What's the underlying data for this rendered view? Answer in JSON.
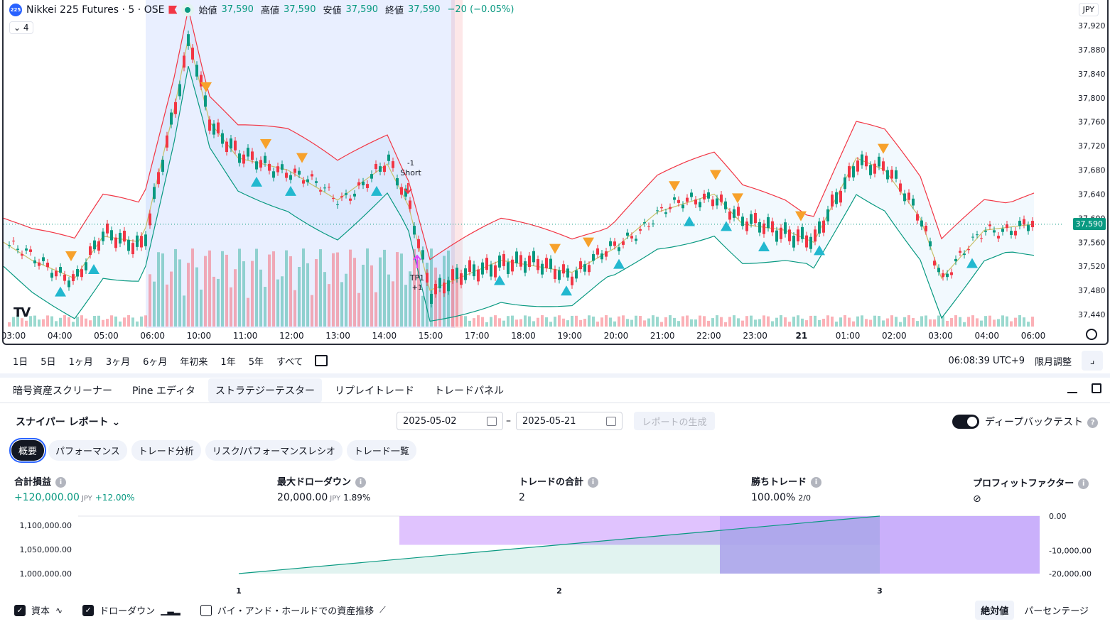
{
  "symbol": {
    "badge": "225",
    "name": "Nikkei 225 Futures · 5 · OSE",
    "ohlc": [
      {
        "label": "始値",
        "value": "37,590"
      },
      {
        "label": "高値",
        "value": "37,590"
      },
      {
        "label": "安値",
        "value": "37,590"
      },
      {
        "label": "終値",
        "value": "37,590"
      }
    ],
    "change": "−20 (−0.05%)",
    "indicator_count": "4",
    "currency": "JPY",
    "last_price": "37,590"
  },
  "price_axis": [
    "37,920",
    "37,880",
    "37,840",
    "37,800",
    "37,760",
    "37,720",
    "37,680",
    "37,640",
    "37,600",
    "37,560",
    "37,520",
    "37,480",
    "37,440"
  ],
  "time_axis": [
    "03:00",
    "04:00",
    "05:00",
    "06:00",
    "10:00",
    "11:00",
    "12:00",
    "13:00",
    "14:00",
    "15:00",
    "17:00",
    "18:00",
    "19:00",
    "20:00",
    "21:00",
    "22:00",
    "23:00",
    "21",
    "01:00",
    "02:00",
    "03:00",
    "04:00",
    "06:00"
  ],
  "annotations": {
    "short_qty": "-1",
    "short_label": "Short",
    "tp_label": "TP1",
    "tp_qty": "+1"
  },
  "range_bar": {
    "ranges": [
      "1日",
      "5日",
      "1ヶ月",
      "3ヶ月",
      "6ヶ月",
      "年初来",
      "1年",
      "5年",
      "すべて"
    ],
    "clock": "06:08:39 UTC+9",
    "adjust": "限月調整"
  },
  "panel_tabs": [
    {
      "label": "暗号資産スクリーナー"
    },
    {
      "label": "Pine エディタ"
    },
    {
      "label": "ストラテジーテスター",
      "active": true
    },
    {
      "label": "リプレイトレード"
    },
    {
      "label": "トレードパネル"
    }
  ],
  "report": {
    "title": "スナイパー レポート",
    "date_from": "2025-05-02",
    "date_to": "2025-05-21",
    "dash": "–",
    "generate": "レポートの生成",
    "deep_backtest": "ディープバックテスト"
  },
  "subtabs": [
    {
      "label": "概要",
      "active": true
    },
    {
      "label": "パフォーマンス"
    },
    {
      "label": "トレード分析"
    },
    {
      "label": "リスク/パフォーマンスレシオ"
    },
    {
      "label": "トレード一覧"
    }
  ],
  "metrics": {
    "net_profit": {
      "title": "合計損益",
      "value": "+120,000.00",
      "unit": "JPY",
      "pct": "+12.00%"
    },
    "max_dd": {
      "title": "最大ドローダウン",
      "value": "20,000.00",
      "unit": "JPY",
      "pct": "1.89%"
    },
    "trades": {
      "title": "トレードの合計",
      "value": "2"
    },
    "win": {
      "title": "勝ちトレード",
      "value": "100.00%",
      "sub": "2/0"
    },
    "pf": {
      "title": "プロフィットファクター",
      "value": "⊘"
    }
  },
  "equity_chart": {
    "left_axis": [
      "1,100,000.00",
      "1,050,000.00",
      "1,000,000.00"
    ],
    "right_axis": [
      "0.00",
      "-10,000.00",
      "-20,000.00"
    ],
    "x_labels": [
      "1",
      "2",
      "3"
    ]
  },
  "chart_data": {
    "type": "area",
    "x": [
      1,
      2,
      3
    ],
    "series": [
      {
        "name": "資本",
        "values": [
          1000000,
          1060000,
          1120000
        ]
      },
      {
        "name": "ドローダウン",
        "values": [
          0,
          -10000,
          -20000
        ]
      }
    ],
    "ylim": [
      1000000,
      1120000
    ]
  },
  "legend": {
    "equity": "資本",
    "drawdown": "ドローダウン",
    "buy_hold": "バイ・アンド・ホールドでの資産推移"
  },
  "modes": {
    "absolute": "絶対値",
    "percent": "パーセンテージ"
  },
  "colors": {
    "up": "#089981",
    "down": "#f23645",
    "band_mid": "#c9c16a",
    "buy": "#22b8cf",
    "sell": "#f7a12b"
  }
}
